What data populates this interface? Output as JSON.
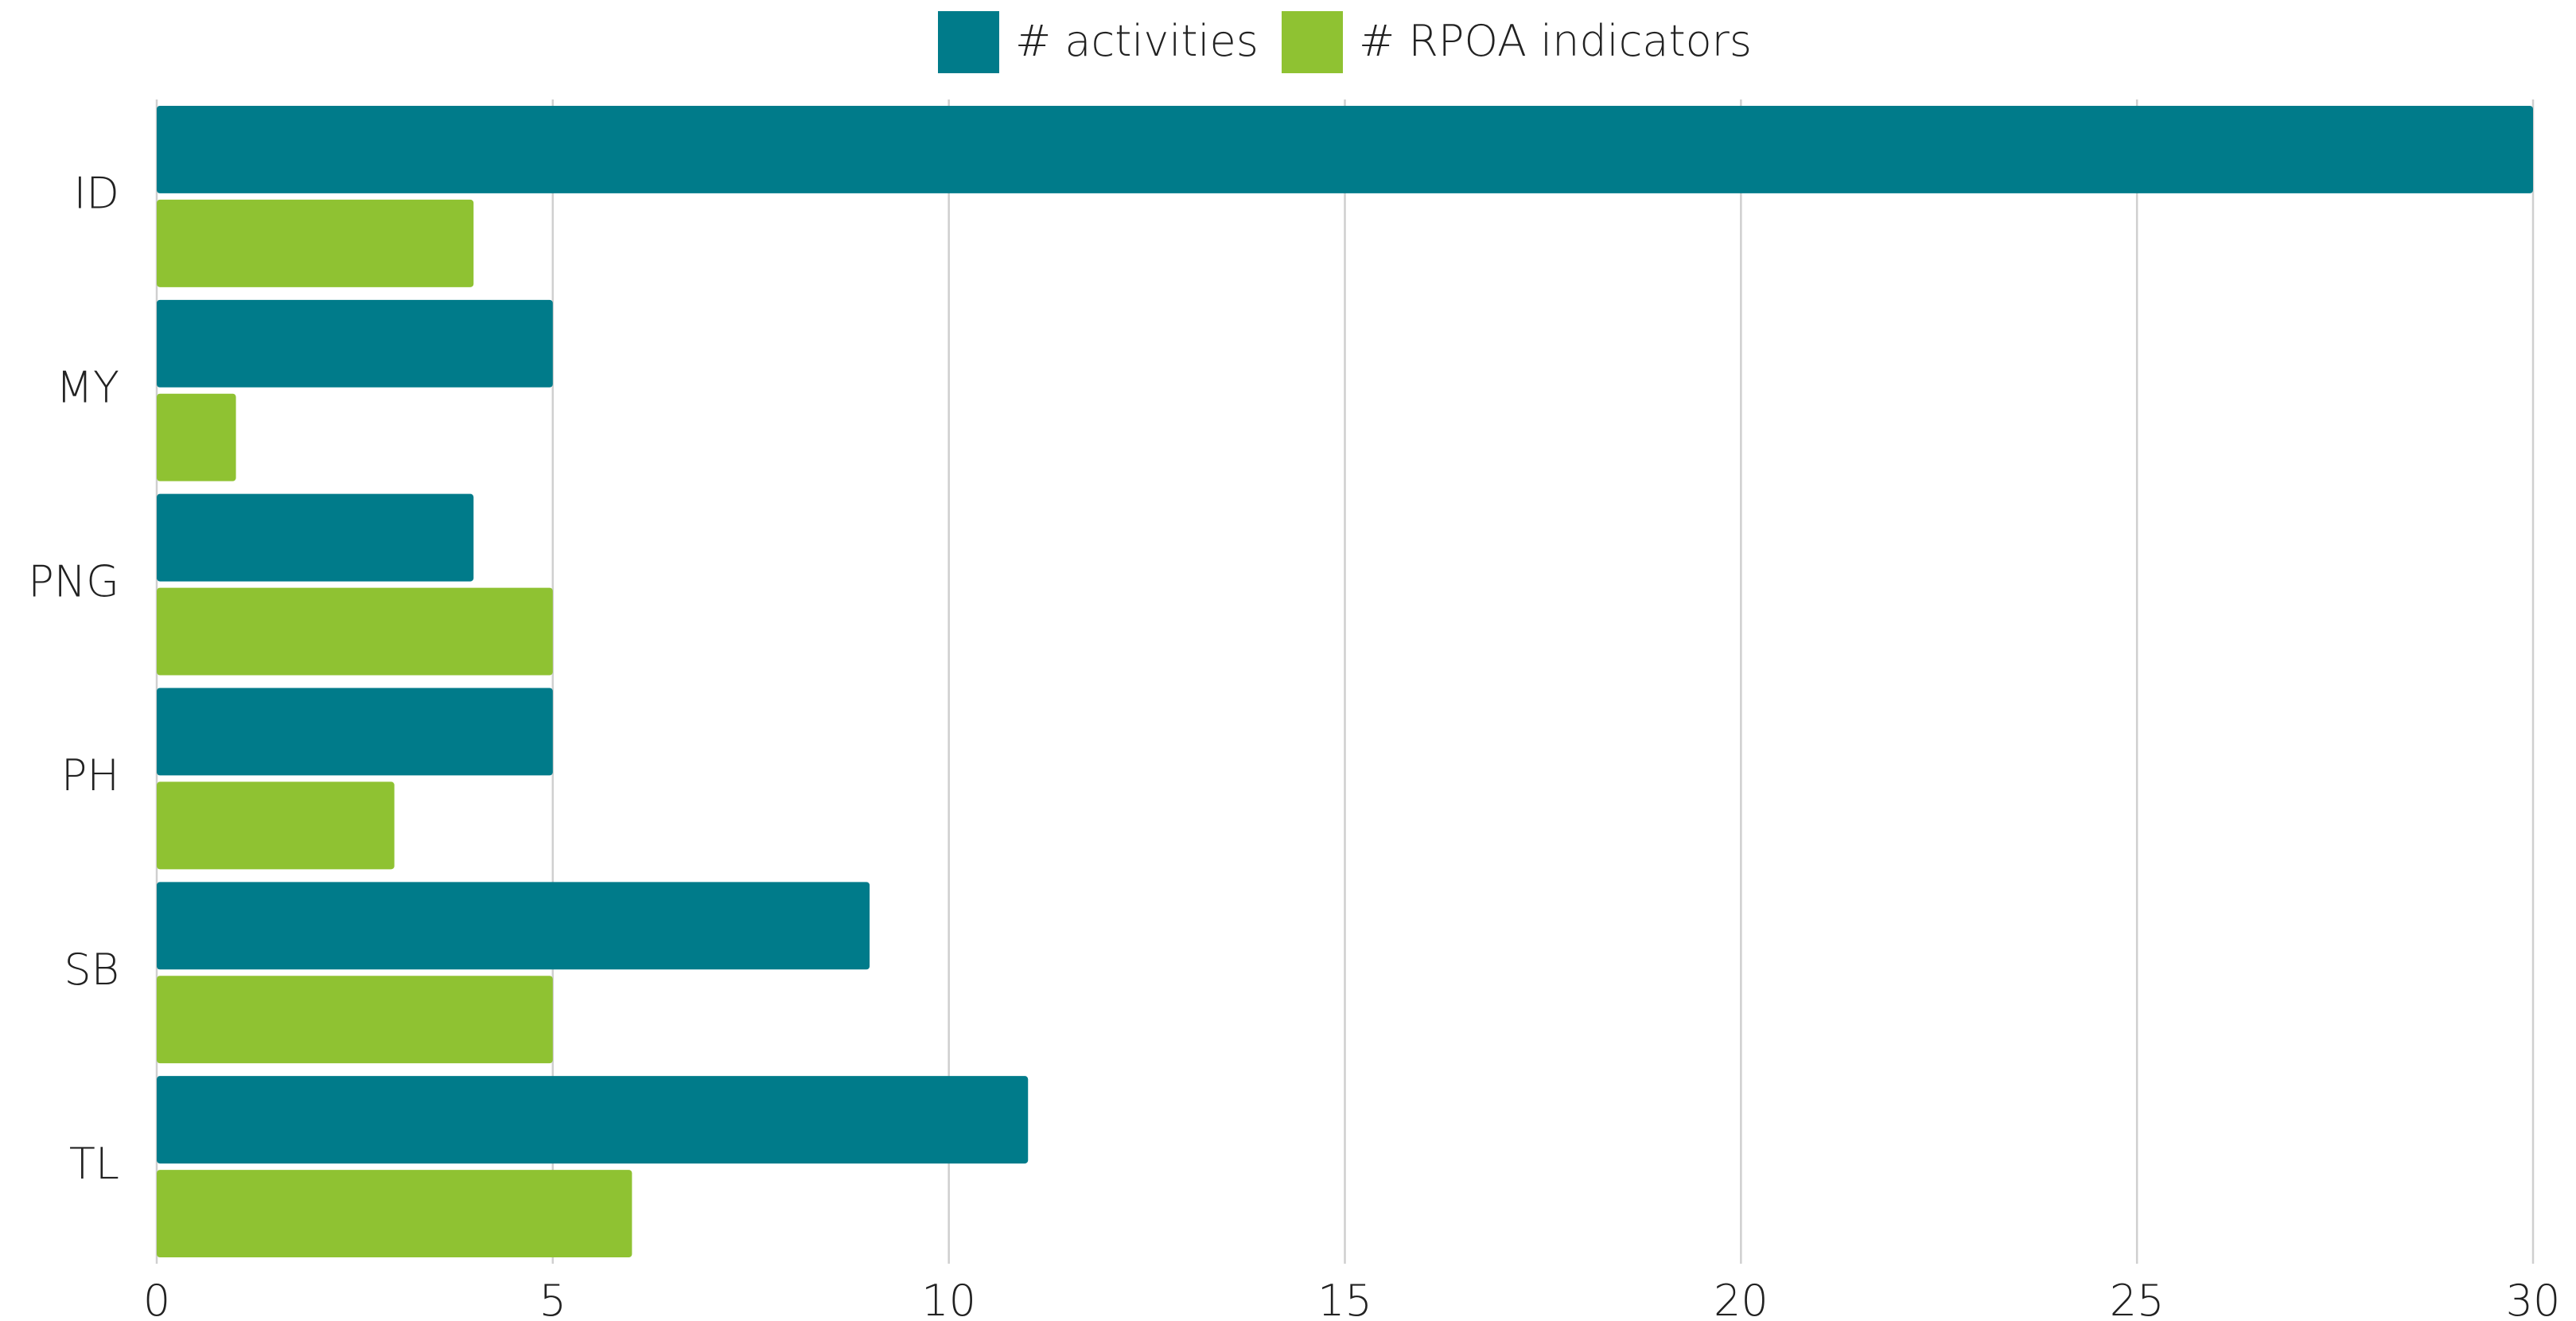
{
  "chart_data": {
    "type": "bar",
    "orientation": "horizontal",
    "categories": [
      "ID",
      "MY",
      "PNG",
      "PH",
      "SB",
      "TL"
    ],
    "series": [
      {
        "name": "# activities",
        "color": "#007b8a",
        "values": [
          30,
          5,
          4,
          5,
          9,
          11
        ]
      },
      {
        "name": "# RPOA indicators",
        "color": "#8fc232",
        "values": [
          4,
          1,
          5,
          3,
          5,
          6
        ]
      }
    ],
    "xlim": [
      0,
      30
    ],
    "xticks": [
      0,
      5,
      10,
      15,
      20,
      25,
      30
    ],
    "grid": true,
    "legend": "top"
  }
}
